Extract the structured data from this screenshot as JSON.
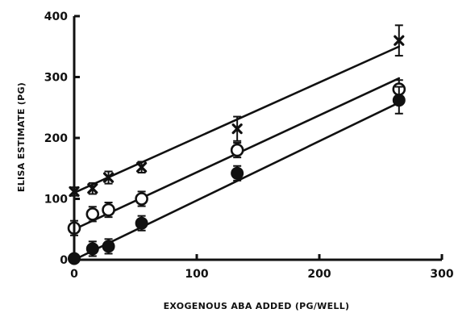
{
  "chart_data": {
    "type": "scatter",
    "title": "",
    "xlabel": "EXOGENOUS ABA ADDED (PG/WELL)",
    "ylabel": "ELISA ESTIMATE (PG)",
    "xlim": [
      0,
      300
    ],
    "ylim": [
      0,
      400
    ],
    "xticks": [
      0,
      100,
      200,
      300
    ],
    "yticks": [
      0,
      100,
      200,
      300,
      400
    ],
    "grid": false,
    "legend": "none",
    "series": [
      {
        "marker": "cross",
        "color": "#111111",
        "points": [
          {
            "x": 0,
            "y": 112,
            "err": 7
          },
          {
            "x": 15,
            "y": 117,
            "err": 9
          },
          {
            "x": 28,
            "y": 135,
            "err": 10
          },
          {
            "x": 55,
            "y": 152,
            "err": 9
          },
          {
            "x": 133,
            "y": 215,
            "err": 20
          },
          {
            "x": 265,
            "y": 360,
            "err": 25
          }
        ],
        "fit": {
          "x": [
            0,
            265
          ],
          "y": [
            110,
            350
          ]
        }
      },
      {
        "marker": "open-circle",
        "color": "#111111",
        "points": [
          {
            "x": 0,
            "y": 52,
            "err": 12
          },
          {
            "x": 15,
            "y": 75,
            "err": 12
          },
          {
            "x": 28,
            "y": 82,
            "err": 12
          },
          {
            "x": 55,
            "y": 100,
            "err": 12
          },
          {
            "x": 133,
            "y": 180,
            "err": 12
          },
          {
            "x": 265,
            "y": 280,
            "err": 15
          }
        ],
        "fit": {
          "x": [
            0,
            265
          ],
          "y": [
            50,
            298
          ]
        }
      },
      {
        "marker": "filled-circle",
        "color": "#111111",
        "points": [
          {
            "x": 0,
            "y": 2,
            "err": 6
          },
          {
            "x": 15,
            "y": 18,
            "err": 12
          },
          {
            "x": 28,
            "y": 22,
            "err": 12
          },
          {
            "x": 55,
            "y": 60,
            "err": 12
          },
          {
            "x": 133,
            "y": 142,
            "err": 12
          },
          {
            "x": 265,
            "y": 262,
            "err": 22
          }
        ],
        "fit": {
          "x": [
            0,
            265
          ],
          "y": [
            0,
            258
          ]
        }
      }
    ]
  }
}
